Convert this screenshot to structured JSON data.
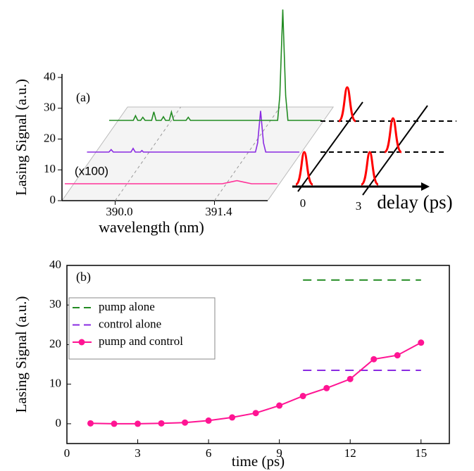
{
  "chart_data": [
    {
      "type": "waterfall",
      "ylabel": "Lasing Signal (a.u.)",
      "xlabel": "wavelength (nm)",
      "annotations": [
        "(a)",
        "(x100)",
        "0",
        "3",
        "delay (ps)"
      ],
      "xlim": [
        389.25,
        392.15
      ],
      "xticks": [
        {
          "value": 390.0,
          "label": "390.0"
        },
        {
          "value": 391.4,
          "label": "391.4"
        }
      ],
      "ylim": [
        0,
        40
      ],
      "yticks": [
        0,
        10,
        20,
        30,
        40
      ],
      "series": [
        {
          "color": "#ff3399",
          "x": [
            389.25,
            391.4,
            391.5,
            391.6,
            391.7,
            391.8,
            392.15
          ],
          "values": [
            0,
            0,
            0.5,
            1,
            0.5,
            0,
            0
          ]
        },
        {
          "color": "#8a2be2",
          "x": [
            389.25,
            389.55,
            389.58,
            389.61,
            389.85,
            389.88,
            389.91,
            389.98,
            390.0,
            390.02,
            391.55,
            391.58,
            391.62,
            391.66,
            391.69,
            392.15
          ],
          "values": [
            0,
            0,
            0.8,
            0,
            0,
            1.2,
            0,
            0,
            0.5,
            0,
            0,
            3,
            13.4,
            3,
            0,
            0
          ]
        },
        {
          "color": "#228b22",
          "x": [
            389.25,
            389.58,
            389.61,
            389.64,
            389.68,
            389.71,
            389.74,
            389.83,
            389.86,
            389.89,
            389.96,
            389.99,
            390.02,
            390.07,
            390.1,
            390.13,
            390.3,
            390.33,
            390.36,
            391.55,
            391.58,
            391.62,
            391.66,
            391.69,
            392.15
          ],
          "values": [
            0,
            0,
            1.5,
            0,
            0,
            1,
            0,
            0,
            2.8,
            0,
            0,
            1.2,
            0,
            0,
            2.7,
            0,
            0,
            1,
            0,
            0,
            8,
            36,
            8,
            0,
            0
          ]
        }
      ]
    },
    {
      "type": "line",
      "label": "(b)",
      "xlabel": "time (ps)",
      "ylabel": "Lasing Signal (a.u.)",
      "xlim": [
        0,
        16.2
      ],
      "xticks": [
        0,
        3,
        6,
        9,
        12,
        15
      ],
      "ylim": [
        -5,
        40
      ],
      "yticks": [
        0,
        10,
        20,
        30,
        40
      ],
      "series": [
        {
          "name": "pump alone",
          "color": "#228b22",
          "line_style": "dash",
          "x": [
            10,
            15
          ],
          "values": [
            36.3,
            36.3
          ]
        },
        {
          "name": "control alone",
          "color": "#8a2be2",
          "line_style": "dash",
          "x": [
            10,
            15
          ],
          "values": [
            13.5,
            13.5
          ]
        },
        {
          "name": "pump and control",
          "color": "#ff1493",
          "line_style": "solid",
          "marker": "circle",
          "x": [
            1,
            2,
            3,
            4,
            5,
            6,
            7,
            8,
            9,
            10,
            11,
            12,
            13,
            14,
            15
          ],
          "values": [
            0.1,
            0,
            0,
            0.1,
            0.3,
            0.8,
            1.6,
            2.7,
            4.6,
            7,
            9,
            11.3,
            16.3,
            17.3,
            20.5
          ]
        }
      ]
    }
  ]
}
